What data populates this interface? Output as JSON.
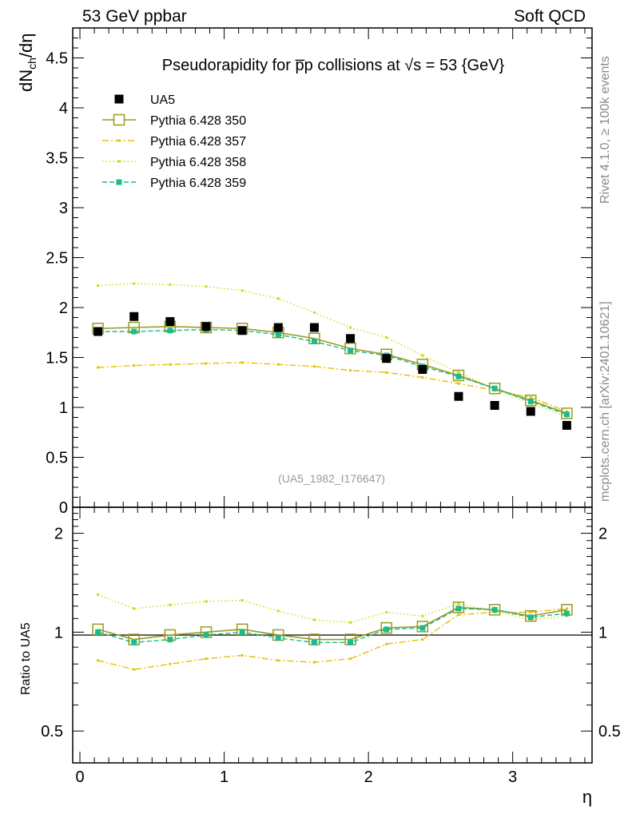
{
  "header": {
    "left_label": "53 GeV ppbar",
    "right_label": "Soft QCD"
  },
  "side_texts": {
    "rivet": "Rivet 4.1.0, ≥ 100k events",
    "mcplots": "mcplots.cern.ch [arXiv:2401.10621]"
  },
  "chart_data": [
    {
      "type": "scatter",
      "panel": "main",
      "title": "Pseudorapidity for p̅p collisions at √s = 53 {GeV}",
      "xlabel": "η",
      "ylabel": "dN_ch/dη",
      "ylabel_main": "dN",
      "ylabel_sub": "ch",
      "ylabel_tail": "/dη",
      "xlim": [
        -0.05,
        3.55
      ],
      "ylim": [
        0,
        4.8
      ],
      "yticks": [
        0,
        0.5,
        1,
        1.5,
        2,
        2.5,
        3,
        3.5,
        4,
        4.5
      ],
      "ytick_labels": [
        "0",
        "0.5",
        "1",
        "1.5",
        "2",
        "2.5",
        "3",
        "3.5",
        "4",
        "4.5"
      ],
      "reference_label": "(UA5_1982_I176647)",
      "x": [
        0.125,
        0.375,
        0.625,
        0.875,
        1.125,
        1.375,
        1.625,
        1.875,
        2.125,
        2.375,
        2.625,
        2.875,
        3.125,
        3.375
      ],
      "data": {
        "name": "UA5",
        "color": "#000000",
        "values": [
          1.76,
          1.91,
          1.86,
          1.81,
          1.77,
          1.8,
          1.8,
          1.69,
          1.49,
          1.38,
          1.11,
          1.02,
          0.96,
          0.82
        ]
      },
      "series": [
        {
          "name": "Pythia 6.428 350",
          "color": "#9a9a22",
          "style": "solid",
          "marker": "open-square",
          "values": [
            1.79,
            1.8,
            1.81,
            1.8,
            1.79,
            1.75,
            1.69,
            1.59,
            1.53,
            1.43,
            1.32,
            1.19,
            1.07,
            0.94
          ]
        },
        {
          "name": "Pythia 6.428 357",
          "color": "#e8c000",
          "style": "dashdot",
          "marker": "small-square",
          "values": [
            1.4,
            1.42,
            1.43,
            1.44,
            1.45,
            1.43,
            1.41,
            1.37,
            1.35,
            1.3,
            1.24,
            1.17,
            1.1,
            0.96
          ]
        },
        {
          "name": "Pythia 6.428 358",
          "color": "#c8dc00",
          "style": "dotted",
          "marker": "small-square",
          "values": [
            2.22,
            2.24,
            2.23,
            2.21,
            2.17,
            2.09,
            1.95,
            1.8,
            1.7,
            1.52,
            1.35,
            1.18,
            1.04,
            0.91
          ]
        },
        {
          "name": "Pythia 6.428 359",
          "color": "#1abc8c",
          "style": "dashed",
          "marker": "filled-square",
          "values": [
            1.76,
            1.76,
            1.77,
            1.78,
            1.77,
            1.73,
            1.66,
            1.57,
            1.52,
            1.41,
            1.31,
            1.19,
            1.06,
            0.93
          ]
        }
      ]
    },
    {
      "type": "line",
      "panel": "ratio",
      "ylabel": "Ratio to UA5",
      "xlabel": "η",
      "xlim": [
        -0.05,
        3.55
      ],
      "ylim": [
        0.4,
        2.4
      ],
      "log_y": true,
      "yticks": [
        0.5,
        1,
        2
      ],
      "ytick_labels": [
        "0.5",
        "1",
        "2"
      ],
      "xticks": [
        0,
        1,
        2,
        3
      ],
      "xtick_labels": [
        "0",
        "1",
        "2",
        "3"
      ],
      "x": [
        0.125,
        0.375,
        0.625,
        0.875,
        1.125,
        1.375,
        1.625,
        1.875,
        2.125,
        2.375,
        2.625,
        2.875,
        3.125,
        3.375
      ],
      "series": [
        {
          "name": "Pythia 6.428 350",
          "color": "#9a9a22",
          "style": "solid",
          "marker": "open-square",
          "values": [
            1.02,
            0.95,
            0.98,
            1.0,
            1.02,
            0.98,
            0.95,
            0.95,
            1.03,
            1.04,
            1.19,
            1.17,
            1.12,
            1.17
          ]
        },
        {
          "name": "Pythia 6.428 357",
          "color": "#e8c000",
          "style": "dashdot",
          "marker": "small-square",
          "values": [
            0.82,
            0.77,
            0.8,
            0.83,
            0.85,
            0.82,
            0.81,
            0.83,
            0.92,
            0.95,
            1.13,
            1.15,
            1.15,
            1.18
          ]
        },
        {
          "name": "Pythia 6.428 358",
          "color": "#c8dc00",
          "style": "dotted",
          "marker": "small-square",
          "values": [
            1.3,
            1.18,
            1.21,
            1.24,
            1.25,
            1.16,
            1.09,
            1.07,
            1.15,
            1.12,
            1.22,
            1.16,
            1.09,
            1.12
          ]
        },
        {
          "name": "Pythia 6.428 359",
          "color": "#1abc8c",
          "style": "dashed",
          "marker": "filled-square",
          "values": [
            1.0,
            0.93,
            0.95,
            0.98,
            1.0,
            0.96,
            0.93,
            0.93,
            1.02,
            1.03,
            1.18,
            1.17,
            1.11,
            1.14
          ]
        }
      ]
    }
  ]
}
